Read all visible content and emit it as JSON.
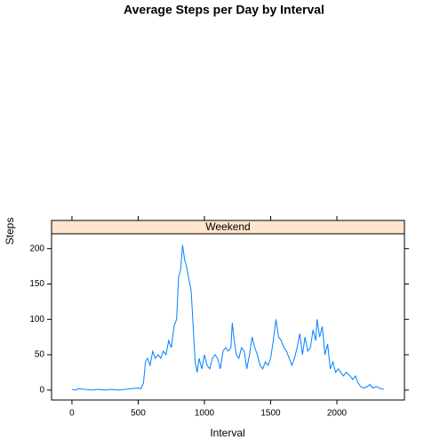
{
  "chart_data": {
    "type": "line",
    "title": "Average Steps per Day by Interval",
    "xlabel": "Interval",
    "ylabel": "Steps",
    "x": [
      0,
      25,
      50,
      100,
      150,
      200,
      250,
      300,
      350,
      400,
      450,
      500,
      520,
      540,
      555,
      570,
      590,
      610,
      630,
      650,
      670,
      690,
      710,
      730,
      750,
      770,
      790,
      805,
      820,
      835,
      850,
      865,
      880,
      900,
      915,
      930,
      945,
      960,
      980,
      1000,
      1020,
      1040,
      1060,
      1080,
      1100,
      1120,
      1140,
      1160,
      1180,
      1200,
      1210,
      1225,
      1240,
      1260,
      1280,
      1300,
      1320,
      1340,
      1360,
      1380,
      1400,
      1420,
      1440,
      1460,
      1480,
      1500,
      1520,
      1540,
      1560,
      1580,
      1600,
      1620,
      1640,
      1660,
      1680,
      1700,
      1720,
      1740,
      1760,
      1780,
      1800,
      1820,
      1840,
      1850,
      1870,
      1890,
      1910,
      1930,
      1950,
      1970,
      1990,
      2010,
      2030,
      2050,
      2070,
      2100,
      2120,
      2140,
      2160,
      2180,
      2200,
      2230,
      2250,
      2270,
      2300,
      2330,
      2355
    ],
    "series": [
      {
        "name": "Weekend",
        "color": "#0080ff",
        "values": [
          1,
          0,
          2,
          1,
          0,
          1,
          0,
          1,
          0,
          1,
          2,
          3,
          2,
          10,
          40,
          45,
          35,
          55,
          45,
          50,
          45,
          55,
          50,
          70,
          60,
          90,
          100,
          160,
          170,
          205,
          185,
          175,
          160,
          140,
          90,
          40,
          25,
          45,
          30,
          50,
          35,
          30,
          45,
          50,
          45,
          30,
          55,
          60,
          55,
          60,
          95,
          70,
          50,
          45,
          60,
          55,
          30,
          50,
          75,
          60,
          50,
          35,
          30,
          40,
          35,
          45,
          70,
          100,
          75,
          70,
          60,
          55,
          45,
          35,
          45,
          60,
          80,
          50,
          75,
          55,
          60,
          85,
          70,
          100,
          75,
          90,
          50,
          65,
          30,
          40,
          25,
          30,
          25,
          20,
          25,
          20,
          15,
          20,
          10,
          5,
          3,
          5,
          8,
          3,
          5,
          2,
          1
        ]
      }
    ],
    "xlim": [
      -154,
      2510
    ],
    "ylim": [
      -14,
      221
    ],
    "xticks": [
      0,
      500,
      1000,
      1500,
      2000
    ],
    "yticks": [
      0,
      50,
      100,
      150,
      200
    ]
  }
}
